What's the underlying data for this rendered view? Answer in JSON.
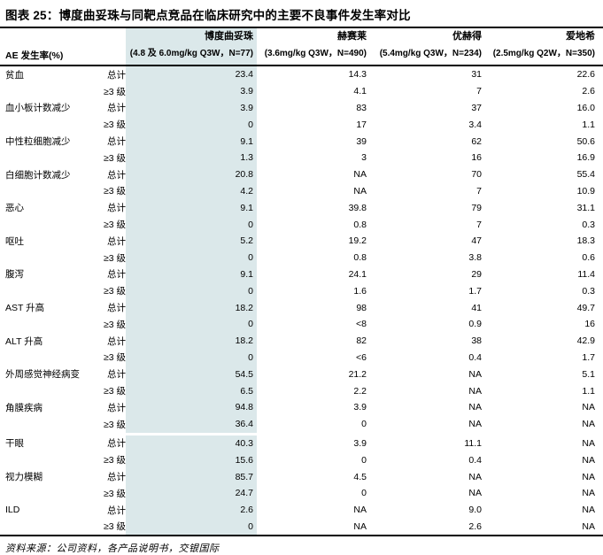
{
  "title": "图表 25：博度曲妥珠与同靶点竞品在临床研究中的主要不良事件发生率对比",
  "footer": "资料来源：公司资料，各产品说明书，交银国际",
  "colors": {
    "highlight_band": "#dbe8ea",
    "rule_lines": "#000000"
  },
  "chart_data": {
    "type": "table",
    "row_header_label": "AE 发生率(%)",
    "sub_row_labels": [
      "总计",
      "≥3 级"
    ],
    "columns": [
      {
        "name": "博度曲妥珠",
        "dose": "(4.8 及 6.0mg/kg Q3W，N=77)",
        "highlighted": true
      },
      {
        "name": "赫赛莱",
        "dose": "(3.6mg/kg Q3W，N=490)",
        "highlighted": false
      },
      {
        "name": "优赫得",
        "dose": "(5.4mg/kg Q3W，N=234)",
        "highlighted": false
      },
      {
        "name": "爱地希",
        "dose": "(2.5mg/kg Q2W，N=350)",
        "highlighted": false
      }
    ],
    "rows": [
      {
        "ae": "贫血",
        "total": [
          "23.4",
          "14.3",
          "31",
          "22.6"
        ],
        "grade3": [
          "3.9",
          "4.1",
          "7",
          "2.6"
        ]
      },
      {
        "ae": "血小板计数减少",
        "total": [
          "3.9",
          "83",
          "37",
          "16.0"
        ],
        "grade3": [
          "0",
          "17",
          "3.4",
          "1.1"
        ]
      },
      {
        "ae": "中性粒细胞减少",
        "total": [
          "9.1",
          "39",
          "62",
          "50.6"
        ],
        "grade3": [
          "1.3",
          "3",
          "16",
          "16.9"
        ]
      },
      {
        "ae": "白细胞计数减少",
        "total": [
          "20.8",
          "NA",
          "70",
          "55.4"
        ],
        "grade3": [
          "4.2",
          "NA",
          "7",
          "10.9"
        ]
      },
      {
        "ae": "恶心",
        "total": [
          "9.1",
          "39.8",
          "79",
          "31.1"
        ],
        "grade3": [
          "0",
          "0.8",
          "7",
          "0.3"
        ]
      },
      {
        "ae": "呕吐",
        "total": [
          "5.2",
          "19.2",
          "47",
          "18.3"
        ],
        "grade3": [
          "0",
          "0.8",
          "3.8",
          "0.6"
        ]
      },
      {
        "ae": "腹泻",
        "total": [
          "9.1",
          "24.1",
          "29",
          "11.4"
        ],
        "grade3": [
          "0",
          "1.6",
          "1.7",
          "0.3"
        ]
      },
      {
        "ae": "AST 升高",
        "total": [
          "18.2",
          "98",
          "41",
          "49.7"
        ],
        "grade3": [
          "0",
          "<8",
          "0.9",
          "16"
        ]
      },
      {
        "ae": "ALT 升高",
        "total": [
          "18.2",
          "82",
          "38",
          "42.9"
        ],
        "grade3": [
          "0",
          "<6",
          "0.4",
          "1.7"
        ]
      },
      {
        "ae": "外周感觉神经病变",
        "total": [
          "54.5",
          "21.2",
          "NA",
          "5.1"
        ],
        "grade3": [
          "6.5",
          "2.2",
          "NA",
          "1.1"
        ]
      },
      {
        "ae": "角膜疾病",
        "total": [
          "94.8",
          "3.9",
          "NA",
          "NA"
        ],
        "grade3": [
          "36.4",
          "0",
          "NA",
          "NA"
        ]
      },
      {
        "ae": "干眼",
        "gap_before": true,
        "total": [
          "40.3",
          "3.9",
          "11.1",
          "NA"
        ],
        "grade3": [
          "15.6",
          "0",
          "0.4",
          "NA"
        ]
      },
      {
        "ae": "视力模糊",
        "total": [
          "85.7",
          "4.5",
          "NA",
          "NA"
        ],
        "grade3": [
          "24.7",
          "0",
          "NA",
          "NA"
        ]
      },
      {
        "ae": "ILD",
        "total": [
          "2.6",
          "NA",
          "9.0",
          "NA"
        ],
        "grade3": [
          "0",
          "NA",
          "2.6",
          "NA"
        ]
      }
    ]
  }
}
